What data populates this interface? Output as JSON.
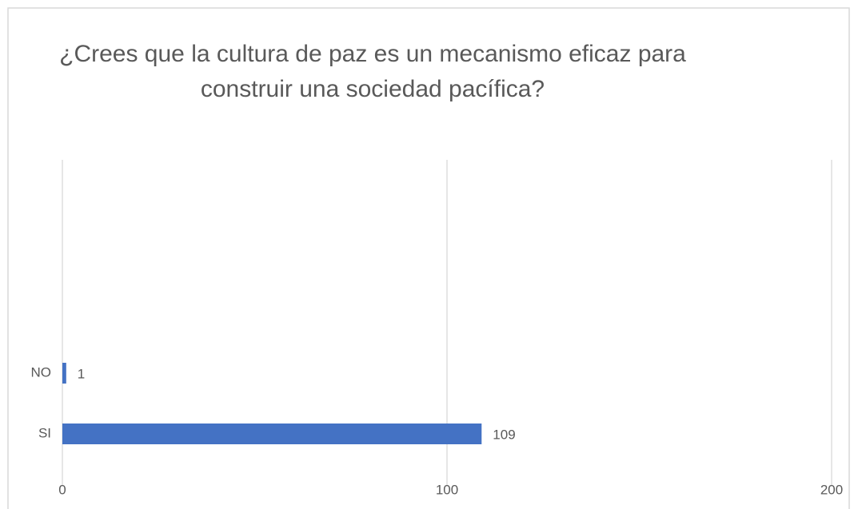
{
  "chart_data": {
    "type": "bar",
    "orientation": "horizontal",
    "title": "¿Crees que la cultura de paz es un mecanismo eficaz para construir una sociedad pacífica?",
    "categories": [
      "SI",
      "NO"
    ],
    "values": [
      109,
      1
    ],
    "color": "#4472c4",
    "xlim": [
      0,
      200
    ],
    "xticks": [
      0,
      100,
      200
    ],
    "grid": true
  }
}
